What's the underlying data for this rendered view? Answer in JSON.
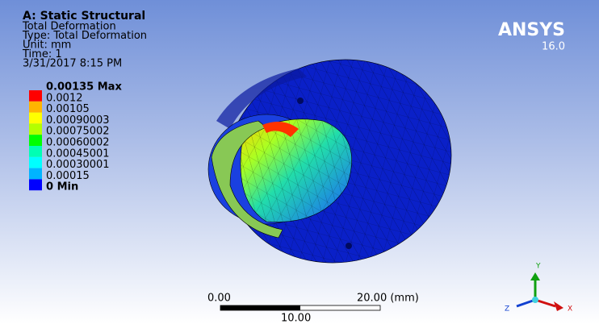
{
  "header": {
    "title": "A: Static Structural",
    "lines": [
      "Total Deformation",
      "Type: Total Deformation",
      "Unit: mm",
      "Time: 1",
      "3/31/2017 8:15 PM"
    ]
  },
  "legend": {
    "labels": [
      "0.00135 Max",
      "0.0012",
      "0.00105",
      "0.00090003",
      "0.00075002",
      "0.00060002",
      "0.00045001",
      "0.00030001",
      "0.00015",
      "0 Min"
    ],
    "colors": [
      "#ff0000",
      "#ffb400",
      "#ffff00",
      "#b4ff00",
      "#00ff00",
      "#00ffb4",
      "#00ffff",
      "#00b4ff",
      "#0000ff"
    ]
  },
  "logo": {
    "name": "ANSYS",
    "version": "16.0"
  },
  "scale_bar": {
    "left": "0.00",
    "right": "20.00 (mm)",
    "middle": "10.00"
  },
  "triad": {
    "y": "Y",
    "z": "Z",
    "x": "X"
  }
}
